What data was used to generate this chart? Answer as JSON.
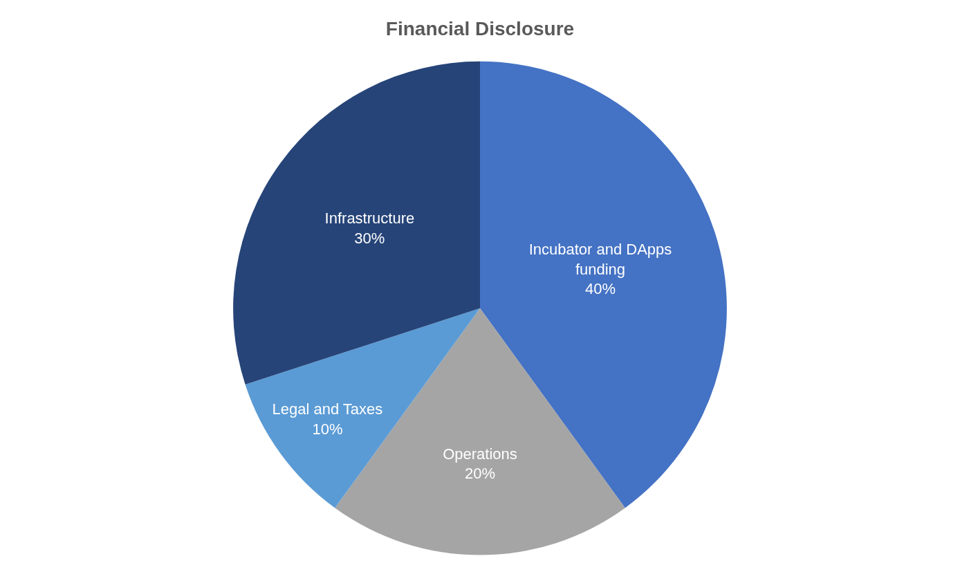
{
  "chart_data": {
    "type": "pie",
    "title": "Financial Disclosure",
    "categories": [
      "Incubator and DApps funding",
      "Operations",
      "Legal and Taxes",
      "Infrastructure"
    ],
    "values": [
      40,
      20,
      10,
      30
    ],
    "colors": [
      "#4472c4",
      "#a5a5a5",
      "#5b9bd5",
      "#264478"
    ],
    "value_labels": [
      "40%",
      "20%",
      "10%",
      "30%"
    ],
    "legend": false
  }
}
